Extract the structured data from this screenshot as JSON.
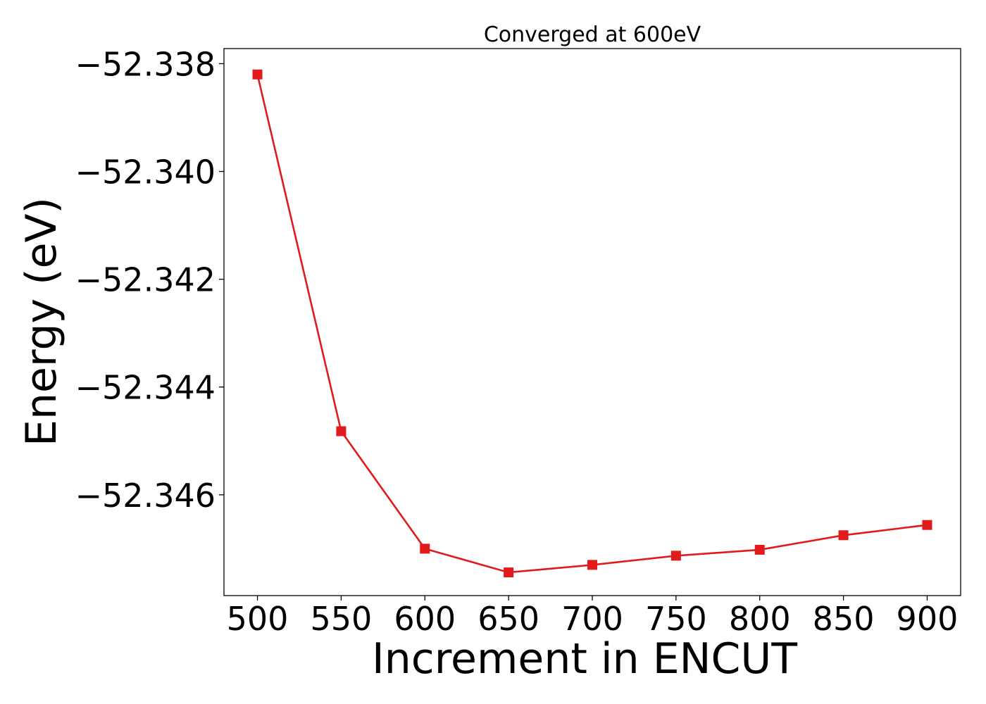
{
  "chart_data": {
    "type": "line",
    "title": "Converged at 600eV",
    "xlabel": "Increment in ENCUT",
    "ylabel": "Energy (eV)",
    "x": [
      500,
      550,
      600,
      650,
      700,
      750,
      800,
      850,
      900
    ],
    "xticks": [
      "500",
      "550",
      "600",
      "650",
      "700",
      "750",
      "800",
      "850",
      "900"
    ],
    "yticks": [
      -52.338,
      -52.34,
      -52.342,
      -52.344,
      -52.346
    ],
    "ytick_labels": [
      "−52.338",
      "−52.340",
      "−52.342",
      "−52.344",
      "−52.346"
    ],
    "xlim": [
      480,
      920
    ],
    "ylim": [
      -52.34787,
      -52.33772
    ],
    "grid": false,
    "series": [
      {
        "values": [
          -52.3382,
          -52.34482,
          -52.347,
          -52.34744,
          -52.3473,
          -52.34713,
          -52.34702,
          -52.34675,
          -52.34656
        ],
        "color": "#e31a1c",
        "marker": "square"
      }
    ]
  }
}
